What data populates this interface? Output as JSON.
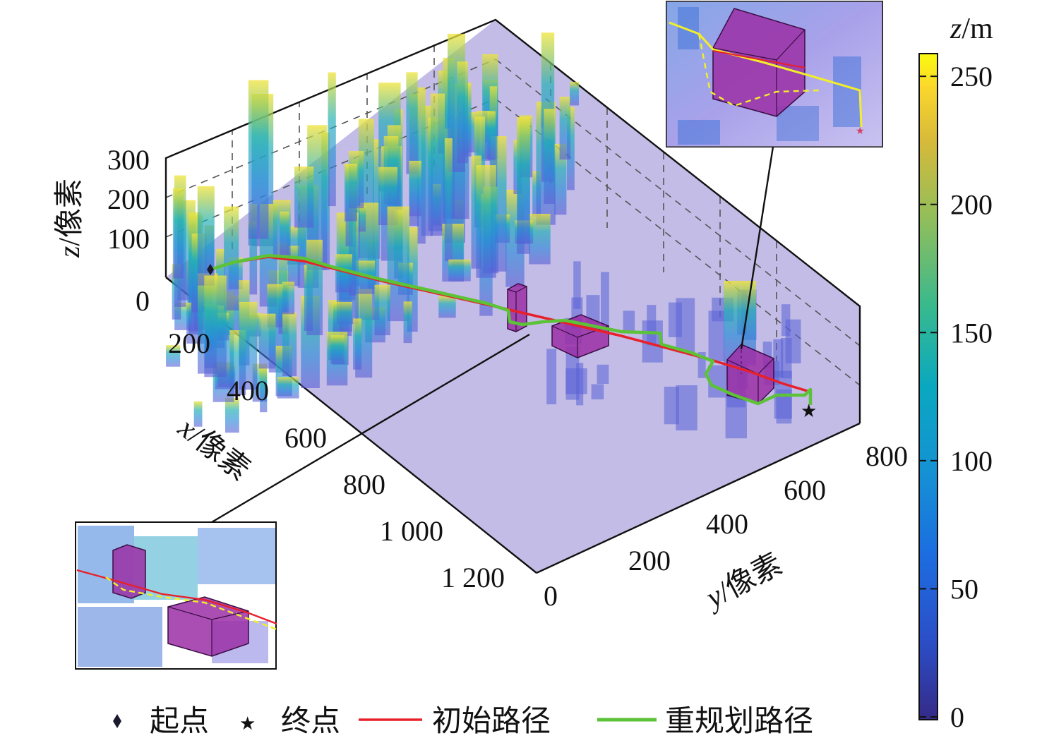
{
  "chart_data": {
    "type": "3d-bar-surface",
    "axes": {
      "x": {
        "label_var": "x",
        "label_unit": "/像素",
        "ticks": [
          "200",
          "400",
          "600",
          "800",
          "1 000",
          "1 200"
        ],
        "range": [
          0,
          1300
        ]
      },
      "y": {
        "label_var": "y",
        "label_unit": "/像素",
        "ticks": [
          "0",
          "200",
          "400",
          "600",
          "800"
        ],
        "range": [
          0,
          850
        ]
      },
      "z": {
        "label_var": "z",
        "label_unit": "/像素",
        "ticks": [
          "0",
          "100",
          "200",
          "300"
        ],
        "range": [
          0,
          300
        ]
      }
    },
    "colorbar": {
      "label_var": "z",
      "label_unit": "/m",
      "ticks": [
        "0",
        "50",
        "100",
        "150",
        "200",
        "250"
      ],
      "range": [
        0,
        255
      ],
      "colormap": "parula"
    },
    "legend": [
      {
        "label": "起点",
        "marker": "diamond",
        "color": "#1a1a2e"
      },
      {
        "label": "终点",
        "marker": "star",
        "color": "#111111"
      },
      {
        "label": "初始路径",
        "line": "solid",
        "color": "#e8202a"
      },
      {
        "label": "重规划路径",
        "line": "solid",
        "color": "#5cc238"
      }
    ],
    "obstacle_color": "#9b2fa6",
    "ground_color": "#b7b0e2",
    "insets": [
      "top-right zoom",
      "bottom-left zoom"
    ]
  }
}
